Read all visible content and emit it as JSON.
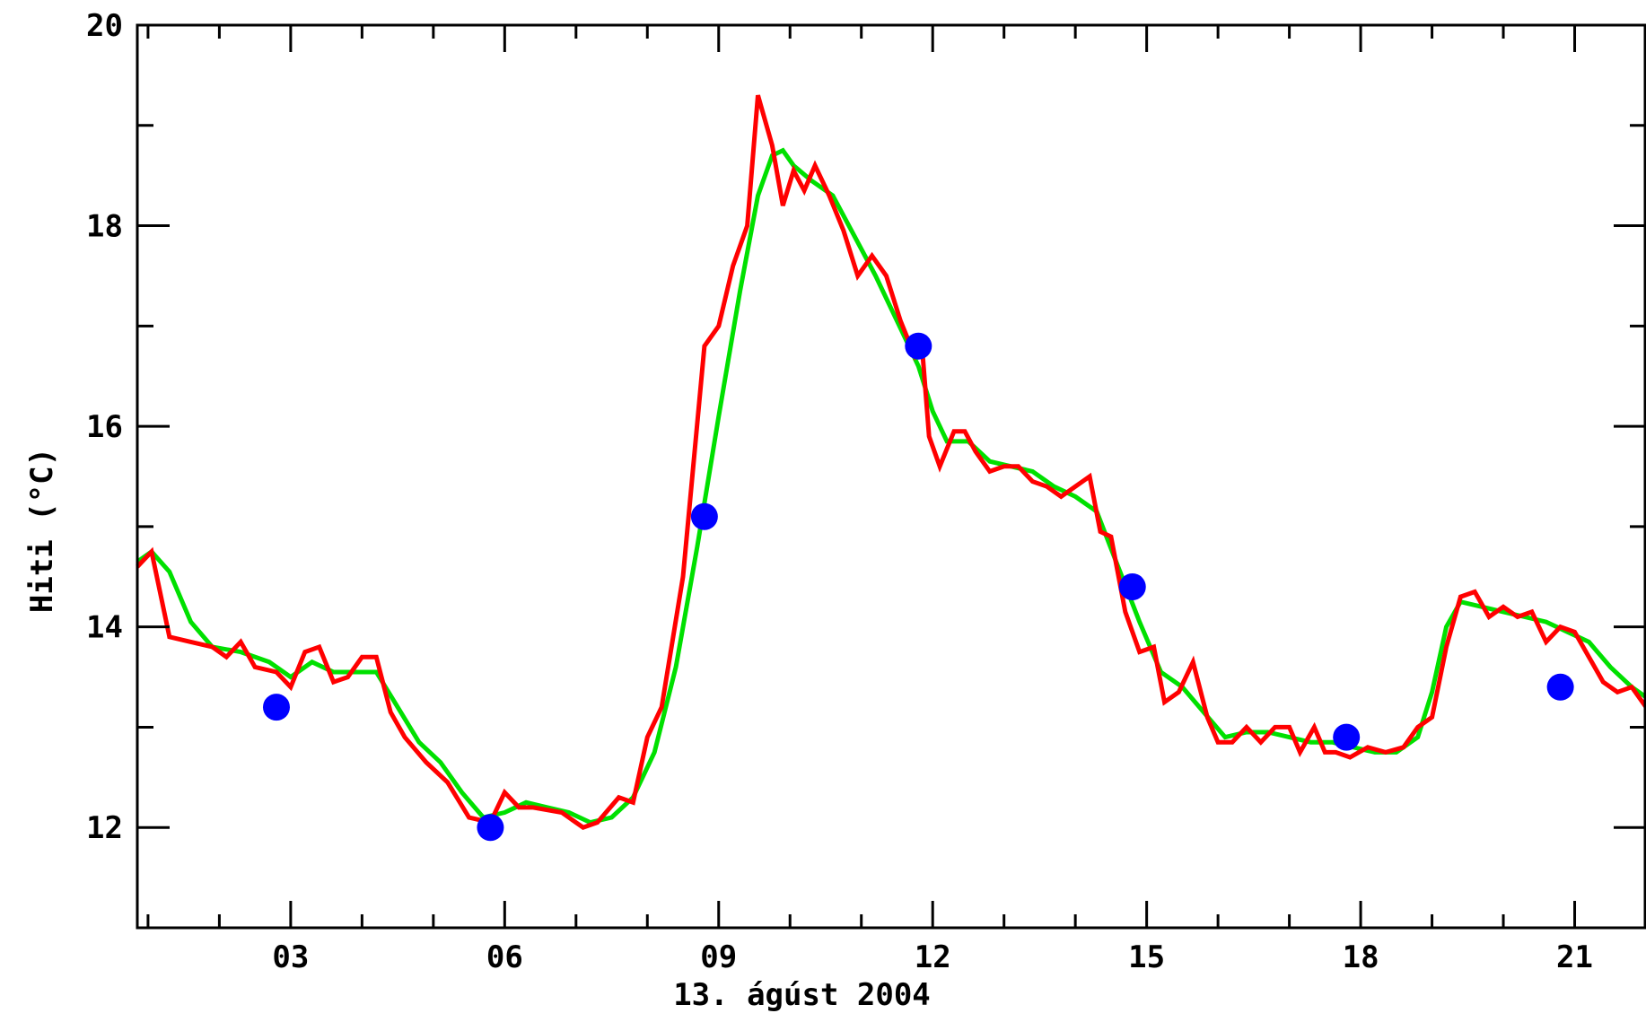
{
  "chart_data": {
    "type": "line",
    "title": "",
    "xlabel": "13. ágúst 2004",
    "ylabel": "Hiti (°C)",
    "x_unit": "hours",
    "xlim": [
      0.85,
      22.0
    ],
    "ylim": [
      11.0,
      20.0
    ],
    "x_ticks": [
      {
        "value": 3,
        "label": "03"
      },
      {
        "value": 6,
        "label": "06"
      },
      {
        "value": 9,
        "label": "09"
      },
      {
        "value": 12,
        "label": "12"
      },
      {
        "value": 15,
        "label": "15"
      },
      {
        "value": 18,
        "label": "18"
      },
      {
        "value": 21,
        "label": "21"
      }
    ],
    "y_ticks": [
      {
        "value": 12,
        "label": "12"
      },
      {
        "value": 14,
        "label": "14"
      },
      {
        "value": 16,
        "label": "16"
      },
      {
        "value": 18,
        "label": "18"
      },
      {
        "value": 20,
        "label": "20"
      }
    ],
    "grid": false,
    "series": [
      {
        "color": "#00e000",
        "style": "line",
        "x": [
          0.85,
          1.05,
          1.3,
          1.6,
          1.9,
          2.3,
          2.7,
          3.0,
          3.3,
          3.6,
          3.9,
          4.2,
          4.5,
          4.8,
          5.1,
          5.4,
          5.7,
          6.0,
          6.3,
          6.6,
          6.9,
          7.2,
          7.5,
          7.8,
          8.1,
          8.4,
          8.7,
          9.0,
          9.3,
          9.55,
          9.75,
          9.9,
          10.05,
          10.3,
          10.6,
          10.9,
          11.2,
          11.5,
          11.8,
          12.0,
          12.2,
          12.5,
          12.8,
          13.1,
          13.4,
          13.7,
          14.0,
          14.3,
          14.6,
          14.9,
          15.2,
          15.5,
          15.8,
          16.1,
          16.4,
          16.7,
          17.0,
          17.3,
          17.6,
          17.9,
          18.2,
          18.5,
          18.8,
          19.0,
          19.2,
          19.4,
          19.7,
          20.0,
          20.3,
          20.6,
          20.9,
          21.2,
          21.5,
          21.8,
          22.0
        ],
        "y": [
          14.65,
          14.75,
          14.55,
          14.05,
          13.8,
          13.75,
          13.65,
          13.5,
          13.65,
          13.55,
          13.55,
          13.55,
          13.2,
          12.85,
          12.65,
          12.35,
          12.1,
          12.15,
          12.25,
          12.2,
          12.15,
          12.05,
          12.1,
          12.3,
          12.75,
          13.6,
          14.8,
          16.1,
          17.35,
          18.3,
          18.7,
          18.75,
          18.6,
          18.45,
          18.3,
          17.9,
          17.5,
          17.05,
          16.6,
          16.15,
          15.85,
          15.85,
          15.65,
          15.6,
          15.55,
          15.4,
          15.3,
          15.15,
          14.6,
          14.05,
          13.55,
          13.4,
          13.15,
          12.9,
          12.95,
          12.95,
          12.9,
          12.85,
          12.85,
          12.8,
          12.75,
          12.75,
          12.9,
          13.35,
          14.0,
          14.25,
          14.2,
          14.15,
          14.1,
          14.05,
          13.95,
          13.85,
          13.6,
          13.4,
          13.3
        ]
      },
      {
        "color": "#ff0000",
        "style": "line",
        "x": [
          0.85,
          1.05,
          1.3,
          1.6,
          1.9,
          2.1,
          2.3,
          2.5,
          2.8,
          3.0,
          3.2,
          3.4,
          3.6,
          3.8,
          4.0,
          4.2,
          4.4,
          4.6,
          4.9,
          5.2,
          5.5,
          5.8,
          6.0,
          6.2,
          6.4,
          6.8,
          7.1,
          7.3,
          7.6,
          7.8,
          8.0,
          8.2,
          8.5,
          8.8,
          9.0,
          9.2,
          9.4,
          9.55,
          9.75,
          9.9,
          10.05,
          10.2,
          10.35,
          10.55,
          10.75,
          10.95,
          11.15,
          11.35,
          11.55,
          11.75,
          11.85,
          11.95,
          12.1,
          12.3,
          12.45,
          12.6,
          12.8,
          13.0,
          13.2,
          13.4,
          13.6,
          13.8,
          14.0,
          14.2,
          14.35,
          14.5,
          14.7,
          14.9,
          15.1,
          15.25,
          15.45,
          15.65,
          15.85,
          16.0,
          16.2,
          16.4,
          16.6,
          16.8,
          17.0,
          17.15,
          17.35,
          17.5,
          17.65,
          17.85,
          18.1,
          18.35,
          18.6,
          18.8,
          19.0,
          19.2,
          19.4,
          19.6,
          19.8,
          20.0,
          20.2,
          20.4,
          20.6,
          20.8,
          21.0,
          21.2,
          21.4,
          21.6,
          21.8,
          22.0
        ],
        "y": [
          14.6,
          14.75,
          13.9,
          13.85,
          13.8,
          13.7,
          13.85,
          13.6,
          13.55,
          13.4,
          13.75,
          13.8,
          13.45,
          13.5,
          13.7,
          13.7,
          13.15,
          12.9,
          12.65,
          12.45,
          12.1,
          12.05,
          12.35,
          12.2,
          12.2,
          12.15,
          12.0,
          12.05,
          12.3,
          12.25,
          12.9,
          13.2,
          14.5,
          16.8,
          17.0,
          17.6,
          18.0,
          19.3,
          18.8,
          18.2,
          18.55,
          18.35,
          18.6,
          18.3,
          17.95,
          17.5,
          17.7,
          17.5,
          17.05,
          16.7,
          16.8,
          15.9,
          15.6,
          15.95,
          15.95,
          15.75,
          15.55,
          15.6,
          15.6,
          15.45,
          15.4,
          15.3,
          15.4,
          15.5,
          14.95,
          14.9,
          14.15,
          13.75,
          13.8,
          13.25,
          13.35,
          13.65,
          13.1,
          12.85,
          12.85,
          13.0,
          12.85,
          13.0,
          13.0,
          12.75,
          13.0,
          12.75,
          12.75,
          12.7,
          12.8,
          12.75,
          12.8,
          13.0,
          13.1,
          13.8,
          14.3,
          14.35,
          14.1,
          14.2,
          14.1,
          14.15,
          13.85,
          14.0,
          13.95,
          13.7,
          13.45,
          13.35,
          13.4,
          13.2
        ]
      },
      {
        "color": "#0000ff",
        "style": "markers",
        "x": [
          2.8,
          5.8,
          8.8,
          11.8,
          14.8,
          17.8,
          20.8
        ],
        "y": [
          13.2,
          12.0,
          15.1,
          16.8,
          14.4,
          12.9,
          13.4
        ]
      }
    ]
  }
}
